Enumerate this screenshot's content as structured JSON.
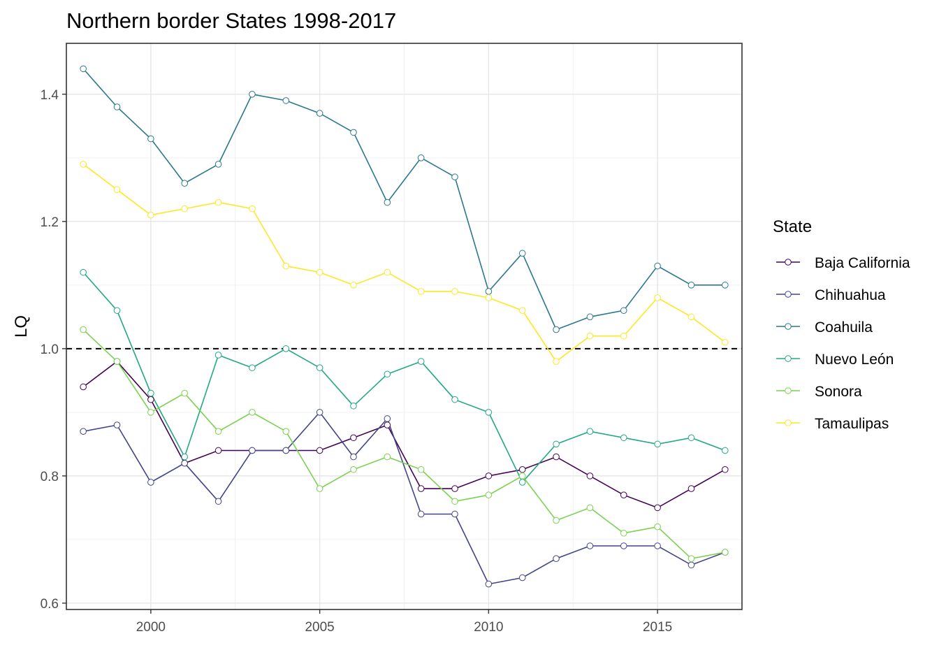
{
  "chart_data": {
    "type": "line",
    "title": "Northern border States 1998-2017",
    "xlabel": "",
    "ylabel": "LQ",
    "xlim": [
      1997.5,
      2017.5
    ],
    "ylim": [
      0.59,
      1.48
    ],
    "x_ticks": [
      2000,
      2005,
      2010,
      2015
    ],
    "y_ticks": [
      0.6,
      0.8,
      1.0,
      1.2,
      1.4
    ],
    "y_tick_labels": [
      "0.6",
      "0.8",
      "1.0",
      "1.2",
      "1.4"
    ],
    "grid": true,
    "reference_line": {
      "y": 1.0,
      "style": "dashed"
    },
    "legend": {
      "title": "State",
      "position": "right"
    },
    "x": [
      1998,
      1999,
      2000,
      2001,
      2002,
      2003,
      2004,
      2005,
      2006,
      2007,
      2008,
      2009,
      2010,
      2011,
      2012,
      2013,
      2014,
      2015,
      2016,
      2017
    ],
    "series": [
      {
        "name": "Baja California",
        "color": "#440154",
        "values": [
          0.94,
          0.98,
          0.92,
          0.82,
          0.84,
          0.84,
          0.84,
          0.84,
          0.86,
          0.88,
          0.78,
          0.78,
          0.8,
          0.81,
          0.83,
          0.8,
          0.77,
          0.75,
          0.78,
          0.81
        ]
      },
      {
        "name": "Chihuahua",
        "color": "#414487",
        "values": [
          0.87,
          0.88,
          0.79,
          0.82,
          0.76,
          0.84,
          0.84,
          0.9,
          0.83,
          0.89,
          0.74,
          0.74,
          0.63,
          0.64,
          0.67,
          0.69,
          0.69,
          0.69,
          0.66,
          0.68
        ]
      },
      {
        "name": "Coahuila",
        "color": "#2A788E",
        "values": [
          1.44,
          1.38,
          1.33,
          1.26,
          1.29,
          1.4,
          1.39,
          1.37,
          1.34,
          1.23,
          1.3,
          1.27,
          1.09,
          1.15,
          1.03,
          1.05,
          1.06,
          1.13,
          1.1,
          1.1
        ]
      },
      {
        "name": "Nuevo León",
        "color": "#22A884",
        "values": [
          1.12,
          1.06,
          0.93,
          0.83,
          0.99,
          0.97,
          1.0,
          0.97,
          0.91,
          0.96,
          0.98,
          0.92,
          0.9,
          0.79,
          0.85,
          0.87,
          0.86,
          0.85,
          0.86,
          0.84
        ]
      },
      {
        "name": "Sonora",
        "color": "#7AD151",
        "values": [
          1.03,
          0.98,
          0.9,
          0.93,
          0.87,
          0.9,
          0.87,
          0.78,
          0.81,
          0.83,
          0.81,
          0.76,
          0.77,
          0.8,
          0.73,
          0.75,
          0.71,
          0.72,
          0.67,
          0.68
        ]
      },
      {
        "name": "Tamaulipas",
        "color": "#FDE725",
        "values": [
          1.29,
          1.25,
          1.21,
          1.22,
          1.23,
          1.22,
          1.13,
          1.12,
          1.1,
          1.12,
          1.09,
          1.09,
          1.08,
          1.06,
          0.98,
          1.02,
          1.02,
          1.08,
          1.05,
          1.01
        ]
      }
    ]
  }
}
